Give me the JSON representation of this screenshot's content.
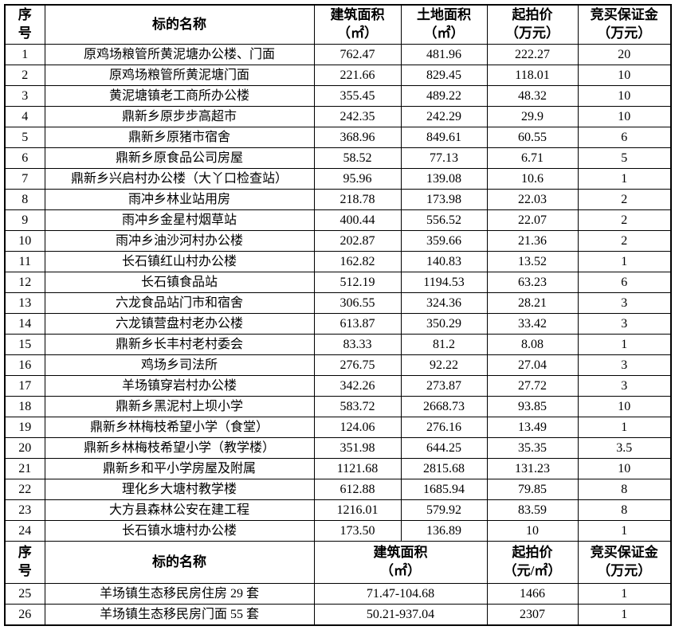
{
  "page": {
    "background": "#ffffff",
    "border_color": "#000000",
    "text_color": "#000000"
  },
  "chart_data": {
    "type": "table",
    "title": "",
    "sections": [
      {
        "columns": [
          "序号",
          "标的名称",
          "建筑面积（㎡）",
          "土地面积（㎡）",
          "起拍价（万元）",
          "竞买保证金（万元）"
        ],
        "rows": [
          [
            "1",
            "原鸡场粮管所黄泥塘办公楼、门面",
            "762.47",
            "481.96",
            "222.27",
            "20"
          ],
          [
            "2",
            "原鸡场粮管所黄泥塘门面",
            "221.66",
            "829.45",
            "118.01",
            "10"
          ],
          [
            "3",
            "黄泥塘镇老工商所办公楼",
            "355.45",
            "489.22",
            "48.32",
            "10"
          ],
          [
            "4",
            "鼎新乡原步步高超市",
            "242.35",
            "242.29",
            "29.9",
            "10"
          ],
          [
            "5",
            "鼎新乡原猪市宿舍",
            "368.96",
            "849.61",
            "60.55",
            "6"
          ],
          [
            "6",
            "鼎新乡原食品公司房屋",
            "58.52",
            "77.13",
            "6.71",
            "5"
          ],
          [
            "7",
            "鼎新乡兴启村办公楼（大丫口检查站）",
            "95.96",
            "139.08",
            "10.6",
            "1"
          ],
          [
            "8",
            "雨冲乡林业站用房",
            "218.78",
            "173.98",
            "22.03",
            "2"
          ],
          [
            "9",
            "雨冲乡金星村烟草站",
            "400.44",
            "556.52",
            "22.07",
            "2"
          ],
          [
            "10",
            "雨冲乡油沙河村办公楼",
            "202.87",
            "359.66",
            "21.36",
            "2"
          ],
          [
            "11",
            "长石镇红山村办公楼",
            "162.82",
            "140.83",
            "13.52",
            "1"
          ],
          [
            "12",
            "长石镇食品站",
            "512.19",
            "1194.53",
            "63.23",
            "6"
          ],
          [
            "13",
            "六龙食品站门市和宿舍",
            "306.55",
            "324.36",
            "28.21",
            "3"
          ],
          [
            "14",
            "六龙镇营盘村老办公楼",
            "613.87",
            "350.29",
            "33.42",
            "3"
          ],
          [
            "15",
            "鼎新乡长丰村老村委会",
            "83.33",
            "81.2",
            "8.08",
            "1"
          ],
          [
            "16",
            "鸡场乡司法所",
            "276.75",
            "92.22",
            "27.04",
            "3"
          ],
          [
            "17",
            "羊场镇穿岩村办公楼",
            "342.26",
            "273.87",
            "27.72",
            "3"
          ],
          [
            "18",
            "鼎新乡黑泥村上坝小学",
            "583.72",
            "2668.73",
            "93.85",
            "10"
          ],
          [
            "19",
            "鼎新乡林梅枝希望小学（食堂）",
            "124.06",
            "276.16",
            "13.49",
            "1"
          ],
          [
            "20",
            "鼎新乡林梅枝希望小学（教学楼）",
            "351.98",
            "644.25",
            "35.35",
            "3.5"
          ],
          [
            "21",
            "鼎新乡和平小学房屋及附属",
            "1121.68",
            "2815.68",
            "131.23",
            "10"
          ],
          [
            "22",
            "理化乡大塘村教学楼",
            "612.88",
            "1685.94",
            "79.85",
            "8"
          ],
          [
            "23",
            "大方县森林公安在建工程",
            "1216.01",
            "579.92",
            "83.59",
            "8"
          ],
          [
            "24",
            "长石镇水塘村办公楼",
            "173.50",
            "136.89",
            "10",
            "1"
          ]
        ]
      },
      {
        "columns": [
          "序号",
          "标的名称",
          "建筑面积（㎡）",
          "起拍价（元/㎡）",
          "竞买保证金（万元）"
        ],
        "rows": [
          [
            "25",
            "羊场镇生态移民房住房 29 套",
            "71.47-104.68",
            "1466",
            "1"
          ],
          [
            "26",
            "羊场镇生态移民房门面 55 套",
            "50.21-937.04",
            "2307",
            "1"
          ]
        ]
      }
    ]
  },
  "table": {
    "header1": {
      "no": "序\n号",
      "name": "标的名称",
      "building_area": "建筑面积",
      "building_area_unit": "（㎡）",
      "land_area": "土地面积",
      "land_area_unit": "（㎡）",
      "price": "起拍价",
      "price_unit": "（万元）",
      "deposit": "竞买保证金",
      "deposit_unit": "（万元）"
    },
    "header2": {
      "no": "序\n号",
      "name": "标的名称",
      "area": "建筑面积",
      "area_unit": "（㎡）",
      "price": "起拍价",
      "price_unit": "（元/㎡）",
      "deposit": "竞买保证金",
      "deposit_unit": "（万元）"
    }
  }
}
